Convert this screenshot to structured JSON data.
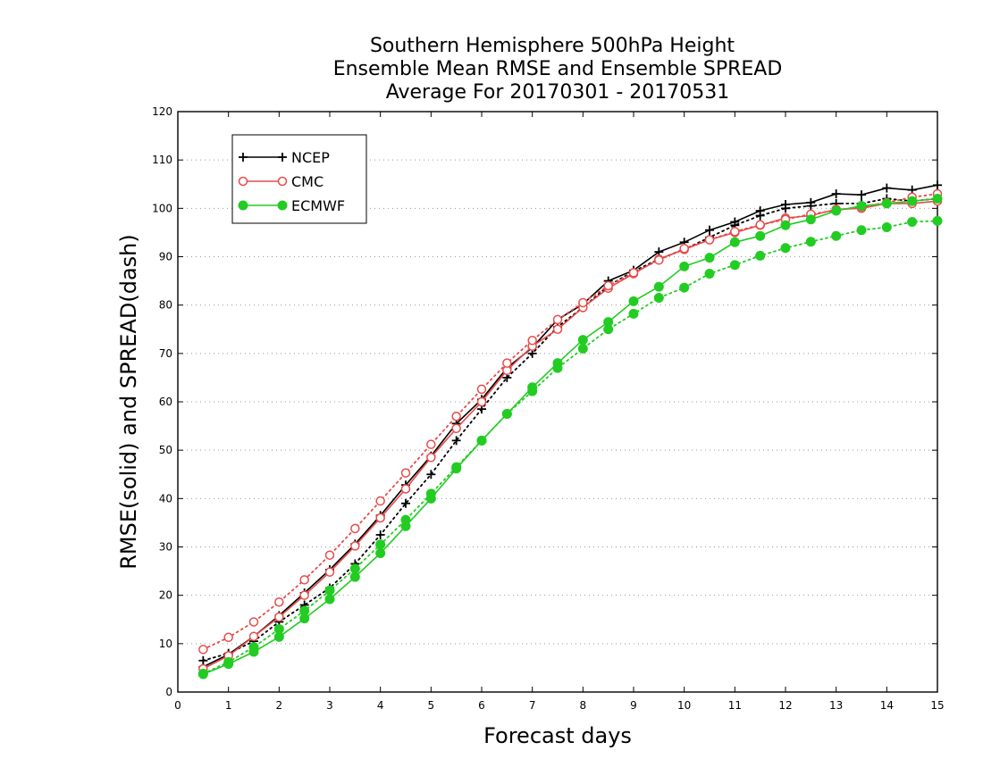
{
  "chart_data": {
    "type": "line",
    "title_lines": [
      "Southern Hemisphere 500hPa Height",
      "Ensemble Mean RMSE and Ensemble SPREAD",
      "Average For 20170301 - 20170531"
    ],
    "xlabel": "Forecast days",
    "ylabel": "RMSE(solid) and SPREAD(dash)",
    "xlim": [
      0,
      15
    ],
    "ylim": [
      0,
      120
    ],
    "xticks": [
      0,
      1,
      2,
      3,
      4,
      5,
      6,
      7,
      8,
      9,
      10,
      11,
      12,
      13,
      14,
      15
    ],
    "yticks": [
      0,
      10,
      20,
      30,
      40,
      50,
      60,
      70,
      80,
      90,
      100,
      110,
      120
    ],
    "grid": "horizontal-dotted",
    "legend_position": "top-left",
    "x": [
      0.5,
      1,
      1.5,
      2,
      2.5,
      3,
      3.5,
      4,
      4.5,
      5,
      5.5,
      6,
      6.5,
      7,
      7.5,
      8,
      8.5,
      9,
      9.5,
      10,
      10.5,
      11,
      11.5,
      12,
      12.5,
      13,
      13.5,
      14,
      14.5,
      15
    ],
    "series": [
      {
        "name": "NCEP",
        "color": "#000000",
        "marker": "plus",
        "style": "solid",
        "metric": "RMSE",
        "values": [
          5.2,
          7.8,
          11.5,
          15.8,
          20.5,
          25.3,
          30.6,
          36.5,
          42.8,
          48.8,
          55.5,
          60.5,
          67.0,
          71.2,
          77.0,
          80.2,
          85.0,
          87.2,
          91.0,
          93.0,
          95.5,
          97.2,
          99.5,
          100.8,
          101.2,
          103.0,
          102.8,
          104.2,
          103.8,
          104.8
        ]
      },
      {
        "name": "NCEP",
        "color": "#000000",
        "marker": "plus",
        "style": "dotted",
        "metric": "SPREAD",
        "values": [
          6.5,
          8.0,
          10.5,
          14.5,
          18.0,
          21.5,
          26.5,
          32.5,
          39.0,
          45.0,
          52.0,
          58.5,
          65.0,
          70.0,
          75.5,
          79.5,
          84.0,
          87.0,
          89.5,
          91.5,
          94.0,
          96.5,
          98.5,
          100.0,
          100.5,
          101.0,
          101.0,
          102.0,
          101.5,
          102.0
        ]
      },
      {
        "name": "CMC",
        "color": "#e84a4a",
        "marker": "circle-open",
        "style": "solid",
        "metric": "RMSE",
        "values": [
          4.8,
          7.5,
          11.5,
          15.5,
          20.0,
          24.8,
          30.2,
          36.0,
          42.0,
          48.5,
          54.5,
          60.0,
          66.5,
          71.5,
          75.0,
          79.5,
          83.5,
          86.5,
          89.5,
          91.5,
          93.5,
          95.0,
          96.5,
          98.0,
          98.5,
          99.8,
          100.0,
          101.0,
          101.0,
          101.5
        ]
      },
      {
        "name": "CMC",
        "color": "#e84a4a",
        "marker": "circle-open",
        "style": "dotted",
        "metric": "SPREAD",
        "values": [
          8.8,
          11.3,
          14.5,
          18.6,
          23.2,
          28.3,
          33.8,
          39.5,
          45.3,
          51.2,
          57.0,
          62.6,
          68.0,
          72.7,
          77.0,
          80.5,
          84.0,
          86.7,
          89.3,
          91.7,
          93.5,
          95.2,
          96.6,
          97.7,
          98.8,
          99.6,
          100.3,
          101.2,
          102.3,
          103.0
        ]
      },
      {
        "name": "ECMWF",
        "color": "#22cc22",
        "marker": "circle-filled",
        "style": "solid",
        "metric": "RMSE",
        "values": [
          3.7,
          5.8,
          8.3,
          11.4,
          15.2,
          19.2,
          23.8,
          28.7,
          34.3,
          40.0,
          46.2,
          52.0,
          57.5,
          63.0,
          68.0,
          72.8,
          76.5,
          80.8,
          83.8,
          88.0,
          89.8,
          93.0,
          94.3,
          96.5,
          97.7,
          99.5,
          100.5,
          101.0,
          101.5,
          102.0
        ]
      },
      {
        "name": "ECMWF",
        "color": "#22cc22",
        "marker": "circle-filled",
        "style": "dotted",
        "metric": "SPREAD",
        "values": [
          3.8,
          6.2,
          9.3,
          13.0,
          16.8,
          21.0,
          25.5,
          30.5,
          35.6,
          41.0,
          46.5,
          52.0,
          57.5,
          62.2,
          67.0,
          71.0,
          75.0,
          78.2,
          81.5,
          83.6,
          86.5,
          88.3,
          90.2,
          91.8,
          93.1,
          94.3,
          95.5,
          96.1,
          97.2,
          97.4
        ]
      }
    ],
    "legend": [
      {
        "label": "NCEP",
        "color": "#000000",
        "marker": "plus"
      },
      {
        "label": "CMC",
        "color": "#e84a4a",
        "marker": "circle-open"
      },
      {
        "label": "ECMWF",
        "color": "#22cc22",
        "marker": "circle-filled"
      }
    ]
  }
}
